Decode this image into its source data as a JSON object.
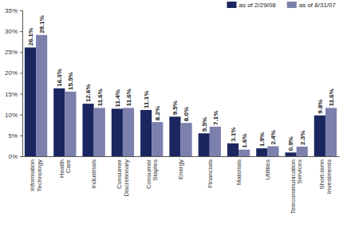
{
  "chart_data": {
    "type": "bar",
    "categories": [
      "Information Technology",
      "Health Care",
      "Industrials",
      "Consumer Discretionary",
      "Consumer Staples",
      "Energy",
      "Financials",
      "Materials",
      "Utilities",
      "Telecommunication Services",
      "Short-term Investments"
    ],
    "series": [
      {
        "name": "as of 2/29/08",
        "color": "#1b2660",
        "values": [
          26.1,
          16.3,
          12.6,
          11.4,
          11.1,
          9.5,
          5.5,
          3.1,
          1.9,
          0.9,
          9.8
        ],
        "value_labels": [
          "26.1%",
          "16.3%",
          "12.6%",
          "11.4%",
          "11.1%",
          "9.5%",
          "5.5%",
          "3.1%",
          "1.9%",
          "0.9%",
          "9.8%"
        ]
      },
      {
        "name": "as of 8/31/07",
        "color": "#7c80ad",
        "values": [
          29.1,
          15.5,
          11.6,
          11.6,
          8.2,
          8.0,
          7.1,
          1.6,
          2.4,
          2.3,
          11.6
        ],
        "value_labels": [
          "29.1%",
          "15.5%",
          "11.6%",
          "11.6%",
          "8.2%",
          "8.0%",
          "7.1%",
          "1.6%",
          "2.4%",
          "2.3%",
          "11.6%"
        ]
      }
    ],
    "ylim": [
      0,
      35
    ],
    "yticks": [
      {
        "value": 0,
        "label": "0%"
      },
      {
        "value": 5,
        "label": "5%"
      },
      {
        "value": 10,
        "label": "10%"
      },
      {
        "value": 15,
        "label": "15%"
      },
      {
        "value": 20,
        "label": "20%"
      },
      {
        "value": 25,
        "label": "25%"
      },
      {
        "value": 30,
        "label": "30%"
      },
      {
        "value": 35,
        "label": "35%"
      }
    ],
    "grid": false,
    "legend": "top-right",
    "data_labels": true
  }
}
